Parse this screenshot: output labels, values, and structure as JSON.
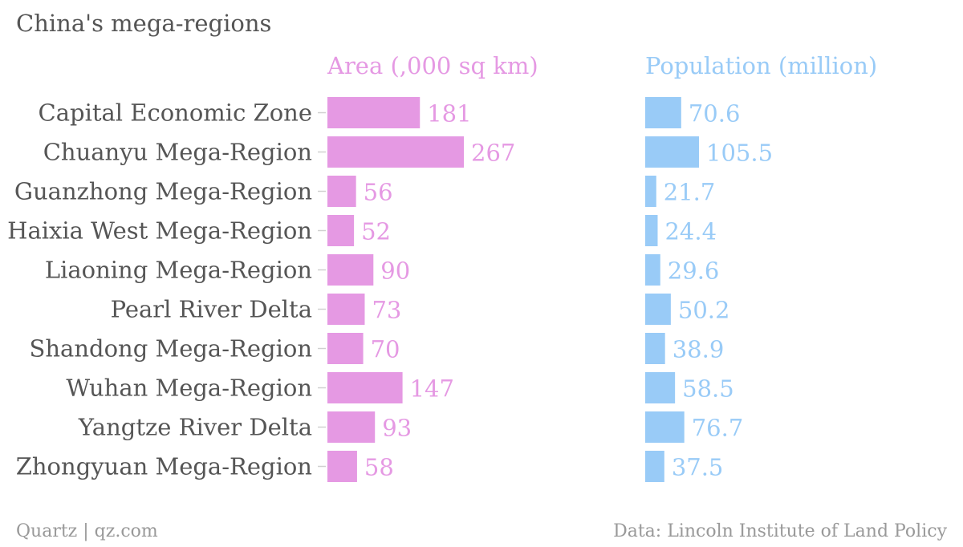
{
  "title": "China's mega-regions",
  "footer": {
    "credit": "Quartz | qz.com",
    "source": "Data: Lincoln Institute of Land Policy"
  },
  "colors": {
    "area": "#e599e3",
    "population": "#99cbf7",
    "category_text": "#555555",
    "tick": "#d0d0d0"
  },
  "chart_data": {
    "type": "bar",
    "orientation": "horizontal",
    "categories": [
      "Capital Economic Zone",
      "Chuanyu Mega-Region",
      "Guanzhong Mega-Region",
      "Haixia West Mega-Region",
      "Liaoning Mega-Region",
      "Pearl River Delta",
      "Shandong Mega-Region",
      "Wuhan Mega-Region",
      "Yangtze River Delta",
      "Zhongyuan Mega-Region"
    ],
    "series": [
      {
        "name": "Area (,000 sq km)",
        "values": [
          181,
          267,
          56,
          52,
          90,
          73,
          70,
          147,
          93,
          58
        ],
        "labels": [
          "181",
          "267",
          "56",
          "52",
          "90",
          "73",
          "70",
          "147",
          "93",
          "58"
        ]
      },
      {
        "name": "Population (million)",
        "values": [
          70.6,
          105.5,
          21.7,
          24.4,
          29.6,
          50.2,
          38.9,
          58.5,
          76.7,
          37.5
        ],
        "labels": [
          "70.6",
          "105.5",
          "21.7",
          "24.4",
          "29.6",
          "50.2",
          "38.9",
          "58.5",
          "76.7",
          "37.5"
        ]
      }
    ],
    "legend": "column headers above each panel",
    "grid": false
  }
}
